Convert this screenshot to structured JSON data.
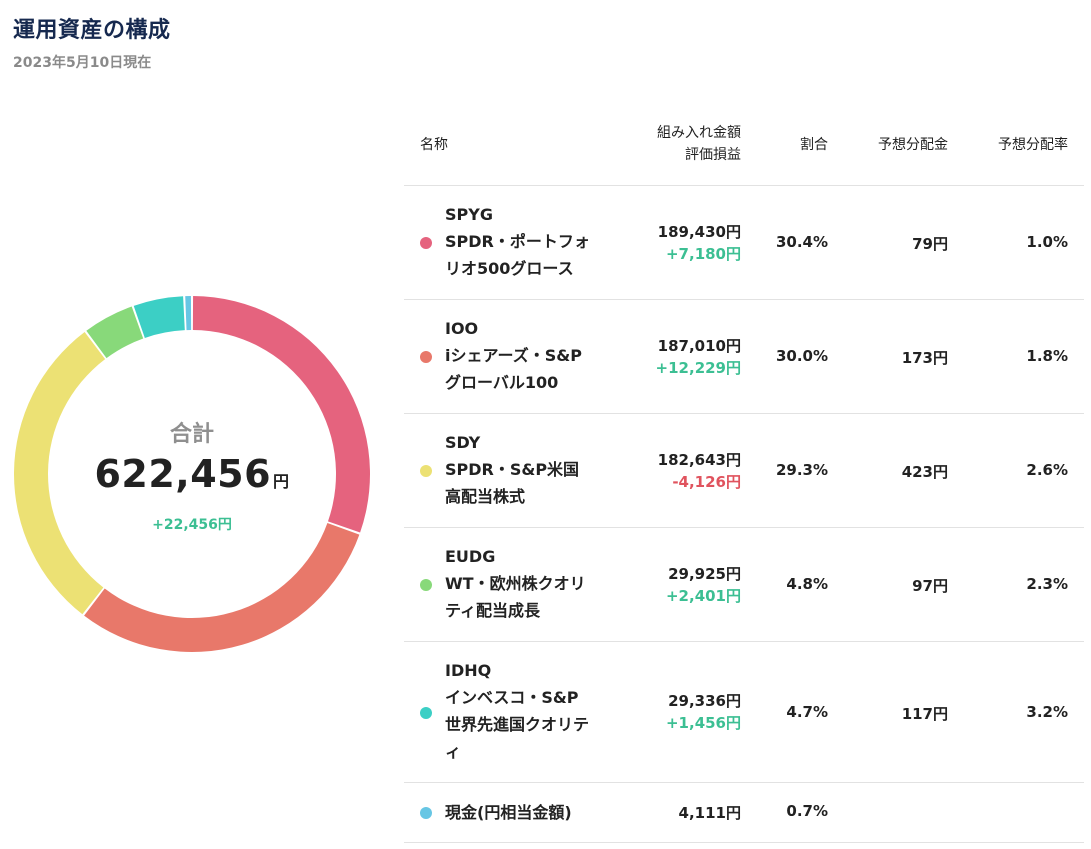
{
  "page": {
    "title": "運用資産の構成",
    "date": "2023年5月10日現在"
  },
  "donut": {
    "label": "合計",
    "total": "622,456",
    "total_unit": "円",
    "gain": "+22,456円"
  },
  "table": {
    "headers": {
      "name": "名称",
      "amount_line1": "組み入れ金額",
      "amount_line2": "評価損益",
      "ratio": "割合",
      "dividend": "予想分配金",
      "yield": "予想分配率"
    },
    "rows": [
      {
        "ticker": "SPYG",
        "name": "SPDR・ポートフォリオ500グロース",
        "amount": "189,430円",
        "pl": "+7,180円",
        "pl_sign": "pos",
        "ratio": "30.4%",
        "dividend": "79円",
        "yield": "1.0%",
        "color": "#e5637e"
      },
      {
        "ticker": "IOO",
        "name": "iシェアーズ・S&Pグローバル100",
        "amount": "187,010円",
        "pl": "+12,229円",
        "pl_sign": "pos",
        "ratio": "30.0%",
        "dividend": "173円",
        "yield": "1.8%",
        "color": "#e8786a"
      },
      {
        "ticker": "SDY",
        "name": "SPDR・S&P米国高配当株式",
        "amount": "182,643円",
        "pl": "-4,126円",
        "pl_sign": "neg",
        "ratio": "29.3%",
        "dividend": "423円",
        "yield": "2.6%",
        "color": "#ece174"
      },
      {
        "ticker": "EUDG",
        "name": "WT・欧州株クオリティ配当成長",
        "amount": "29,925円",
        "pl": "+2,401円",
        "pl_sign": "pos",
        "ratio": "4.8%",
        "dividend": "97円",
        "yield": "2.3%",
        "color": "#88d97a"
      },
      {
        "ticker": "IDHQ",
        "name": "インベスコ・S&P世界先進国クオリティ",
        "amount": "29,336円",
        "pl": "+1,456円",
        "pl_sign": "pos",
        "ratio": "4.7%",
        "dividend": "117円",
        "yield": "3.2%",
        "color": "#3ccfc5"
      },
      {
        "ticker": "",
        "name": "現金(円相当金額)",
        "amount": "4,111円",
        "pl": "",
        "pl_sign": "",
        "ratio": "0.7%",
        "dividend": "",
        "yield": "",
        "color": "#67c6e4"
      }
    ]
  },
  "chart_data": {
    "type": "pie",
    "categories": [
      "SPYG",
      "IOO",
      "SDY",
      "EUDG",
      "IDHQ",
      "現金(円相当金額)"
    ],
    "values": [
      30.4,
      30.0,
      29.3,
      4.8,
      4.7,
      0.7
    ],
    "colors": [
      "#e5637e",
      "#e8786a",
      "#ece174",
      "#88d97a",
      "#3ccfc5",
      "#67c6e4"
    ],
    "donut": true
  }
}
